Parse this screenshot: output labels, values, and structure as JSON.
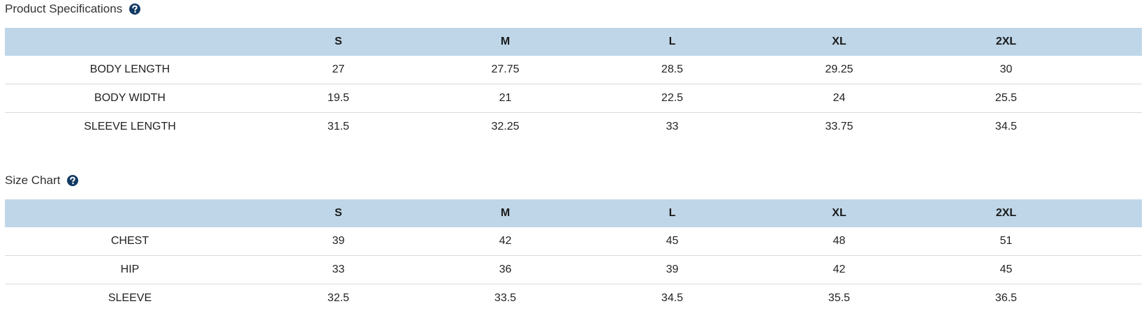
{
  "sections": [
    {
      "title": "Product Specifications",
      "table": {
        "columns": [
          "S",
          "M",
          "L",
          "XL",
          "2XL"
        ],
        "rows": [
          {
            "label": "BODY LENGTH",
            "values": [
              27,
              27.75,
              28.5,
              29.25,
              30
            ]
          },
          {
            "label": "BODY WIDTH",
            "values": [
              19.5,
              21,
              22.5,
              24,
              25.5
            ]
          },
          {
            "label": "SLEEVE LENGTH",
            "values": [
              31.5,
              32.25,
              33,
              33.75,
              34.5
            ]
          }
        ]
      }
    },
    {
      "title": "Size Chart",
      "table": {
        "columns": [
          "S",
          "M",
          "L",
          "XL",
          "2XL"
        ],
        "rows": [
          {
            "label": "CHEST",
            "values": [
              39,
              42,
              45,
              48,
              51
            ]
          },
          {
            "label": "HIP",
            "values": [
              33,
              36,
              39,
              42,
              45
            ]
          },
          {
            "label": "SLEEVE",
            "values": [
              32.5,
              33.5,
              34.5,
              35.5,
              36.5
            ]
          }
        ]
      }
    }
  ]
}
